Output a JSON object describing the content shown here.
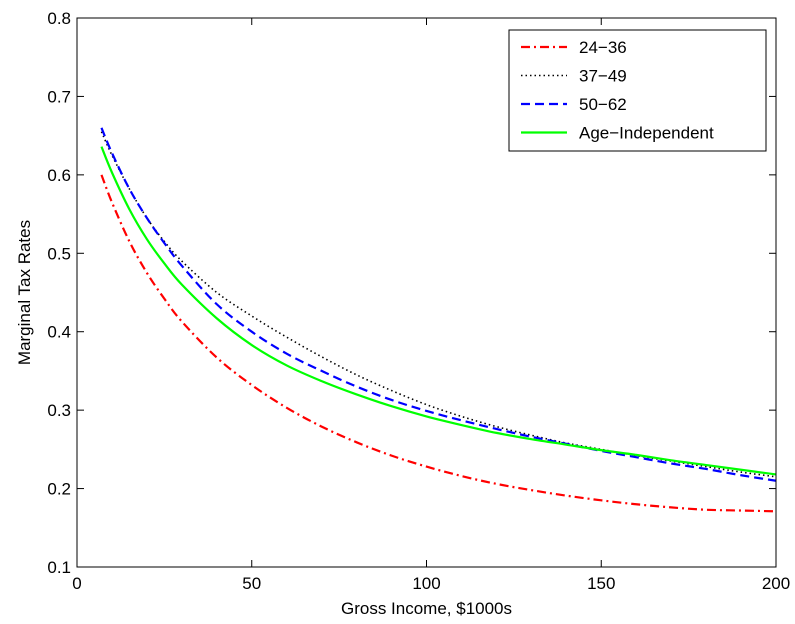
{
  "chart_data": {
    "type": "line",
    "xlabel": "Gross Income, $1000s",
    "ylabel": "Marginal Tax Rates",
    "xlim": [
      0,
      200
    ],
    "ylim": [
      0.1,
      0.8
    ],
    "xticks": [
      0,
      50,
      100,
      150,
      200
    ],
    "yticks": [
      0.1,
      0.2,
      0.3,
      0.4,
      0.5,
      0.6,
      0.7,
      0.8
    ],
    "xtick_labels": [
      "0",
      "50",
      "100",
      "150",
      "200"
    ],
    "ytick_labels": [
      "0.1",
      "0.2",
      "0.3",
      "0.4",
      "0.5",
      "0.6",
      "0.7",
      "0.8"
    ],
    "grid": false,
    "legend_position": "top-right",
    "series": [
      {
        "name": "24−36",
        "color": "#ff0000",
        "style": "dash-dot",
        "x": [
          7,
          10,
          15,
          20,
          25,
          30,
          40,
          50,
          60,
          70,
          80,
          90,
          100,
          110,
          120,
          130,
          140,
          150,
          160,
          170,
          180,
          190,
          200
        ],
        "y": [
          0.6,
          0.565,
          0.515,
          0.475,
          0.442,
          0.413,
          0.367,
          0.332,
          0.303,
          0.279,
          0.259,
          0.242,
          0.228,
          0.216,
          0.206,
          0.198,
          0.191,
          0.185,
          0.18,
          0.176,
          0.173,
          0.172,
          0.171
        ]
      },
      {
        "name": "37−49",
        "color": "#000000",
        "style": "dotted",
        "x": [
          7,
          10,
          15,
          20,
          25,
          30,
          40,
          50,
          60,
          70,
          80,
          90,
          100,
          110,
          120,
          130,
          140,
          150,
          160,
          170,
          180,
          190,
          200
        ],
        "y": [
          0.655,
          0.625,
          0.582,
          0.545,
          0.515,
          0.49,
          0.45,
          0.42,
          0.393,
          0.368,
          0.345,
          0.325,
          0.307,
          0.292,
          0.279,
          0.268,
          0.258,
          0.25,
          0.242,
          0.235,
          0.228,
          0.221,
          0.215
        ]
      },
      {
        "name": "50−62",
        "color": "#0000ff",
        "style": "dashed",
        "x": [
          7,
          10,
          15,
          20,
          25,
          30,
          40,
          50,
          60,
          70,
          80,
          90,
          100,
          110,
          120,
          130,
          140,
          150,
          160,
          170,
          180,
          190,
          200
        ],
        "y": [
          0.66,
          0.628,
          0.582,
          0.545,
          0.513,
          0.484,
          0.435,
          0.4,
          0.372,
          0.35,
          0.33,
          0.313,
          0.299,
          0.287,
          0.276,
          0.266,
          0.257,
          0.248,
          0.24,
          0.232,
          0.225,
          0.217,
          0.21
        ]
      },
      {
        "name": "Age−Independent",
        "color": "#00ff00",
        "style": "solid",
        "x": [
          7,
          10,
          15,
          20,
          25,
          30,
          40,
          50,
          60,
          70,
          80,
          90,
          100,
          110,
          120,
          130,
          140,
          150,
          160,
          170,
          180,
          190,
          200
        ],
        "y": [
          0.636,
          0.603,
          0.556,
          0.518,
          0.487,
          0.46,
          0.417,
          0.383,
          0.357,
          0.337,
          0.32,
          0.305,
          0.292,
          0.281,
          0.271,
          0.263,
          0.256,
          0.249,
          0.243,
          0.236,
          0.23,
          0.224,
          0.218
        ]
      }
    ]
  }
}
